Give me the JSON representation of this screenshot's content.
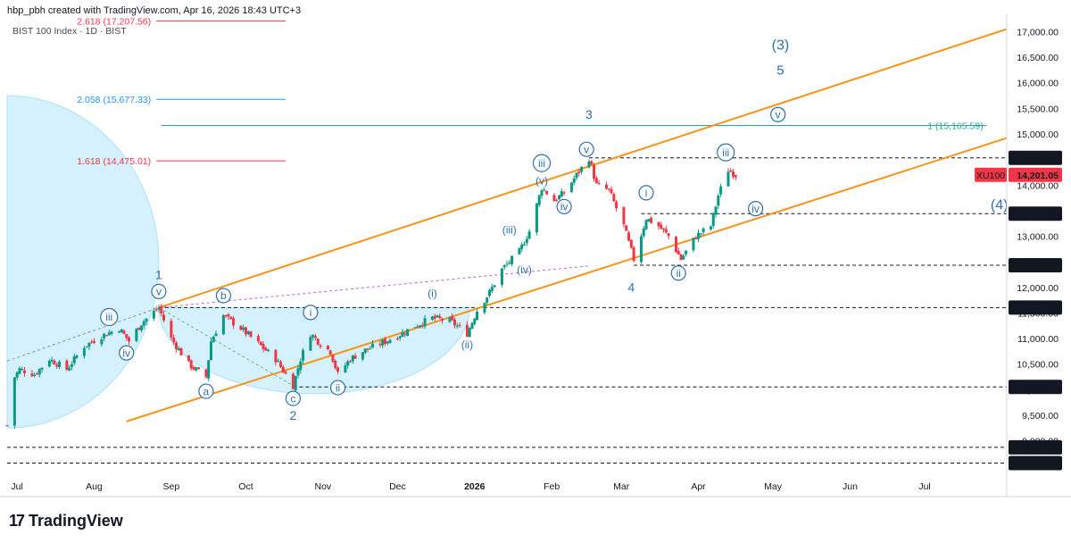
{
  "header": {
    "caption": "hbp_pbh created with TradingView.com, Apr 16, 2026 18:43 UTC+3",
    "symbol_line": "BIST 100 Index · 1D · BIST"
  },
  "footer": {
    "brand": "TradingView",
    "logo_mark": "17"
  },
  "chart_data": {
    "type": "candlestick",
    "symbol": "XU100",
    "last_price": "14,201.05",
    "colors": {
      "up": "#089981",
      "down": "#f23645",
      "channel": "#f7931a",
      "wave_label": "#2e6fac",
      "ellipse_fill": "#b3e5fc",
      "fib_red": "#f23645",
      "fib_blue": "#2196f3",
      "fib_teal": "#26a69a",
      "dashed_line": "#131722",
      "purple_dashed": "#9c27b0",
      "green_dashed": "#4caf50",
      "last_price_bg": "#f23645"
    },
    "y_axis": {
      "range": [
        8400,
        17200
      ],
      "ticks": [
        "9,000.00",
        "9,500.00",
        "10,000.00",
        "10,500.00",
        "11,000.00",
        "11,500.00",
        "12,000.00",
        "12,500.00",
        "13,000.00",
        "13,500.00",
        "14,000.00",
        "14,500.00",
        "15,000.00",
        "15,500.00",
        "16,000.00",
        "16,500.00",
        "17,000.00"
      ],
      "tick_values": [
        9000,
        9500,
        10000,
        10500,
        11000,
        11500,
        12000,
        12500,
        13000,
        13500,
        14000,
        14500,
        15000,
        15500,
        16000,
        16500,
        17000
      ]
    },
    "x_axis": {
      "labels": [
        "Jul",
        "Aug",
        "Sep",
        "Oct",
        "Nov",
        "Dec",
        "2026",
        "Feb",
        "Mar",
        "Apr",
        "May",
        "Jun",
        "Jul"
      ],
      "label_dates": [
        "2025-07-01",
        "2025-08-01",
        "2025-09-01",
        "2025-10-01",
        "2025-11-01",
        "2025-12-01",
        "2026-01-01",
        "2026-02-01",
        "2026-03-01",
        "2026-04-01",
        "2026-05-01",
        "2026-06-01",
        "2026-07-01"
      ],
      "bold_labels": [
        "2026"
      ],
      "range": [
        "2025-06-27",
        "2026-08-03"
      ]
    },
    "price_levels": [
      {
        "value": 14532.67,
        "label": "14,532.67",
        "from": "2026-02-16"
      },
      {
        "value": 13441.36,
        "label": "13,441.36",
        "from": "2026-03-09"
      },
      {
        "value": 12433.04,
        "label": "12,433.04",
        "from": "2026-03-06"
      },
      {
        "value": 11605.3,
        "label": "11,605.30",
        "from": "2025-08-27"
      },
      {
        "value": 10053.74,
        "label": "10,053.74",
        "from": "2025-10-20"
      },
      {
        "value": 8872.75,
        "label": "8,872.75",
        "from": "2025-06-27"
      },
      {
        "value": 8566.62,
        "label": "8,566.62",
        "from": "2025-06-27"
      }
    ],
    "fib_levels": [
      {
        "label": "2.618 (17,207.56)",
        "value": 17207.56,
        "color": "red",
        "from": "2025-08-26",
        "to": "2025-10-17"
      },
      {
        "label": "2.058 (15,677.33)",
        "value": 15677.33,
        "color": "blue",
        "from": "2025-08-26",
        "to": "2025-10-17"
      },
      {
        "label": "1.618 (14,475.01)",
        "value": 14475.01,
        "color": "red",
        "from": "2025-08-26",
        "to": "2025-10-17"
      },
      {
        "label": "1 (15,165.59)",
        "value": 15165.59,
        "color": "teal",
        "from": "2025-08-28",
        "to": "2026-07-26"
      }
    ],
    "channel_lines": [
      {
        "from": [
          "2025-08-27",
          11605.3
        ],
        "to": [
          "2026-08-03",
          17050
        ]
      },
      {
        "from": [
          "2025-08-14",
          9380
        ],
        "to": [
          "2026-08-03",
          14920
        ]
      }
    ],
    "wave_labels": [
      {
        "text": "1",
        "date": "2025-08-27",
        "price": 12250,
        "circle": false,
        "size": 14
      },
      {
        "text": "v",
        "date": "2025-08-27",
        "price": 11920,
        "circle": true
      },
      {
        "text": "iii",
        "date": "2025-08-07",
        "price": 11420,
        "circle": true
      },
      {
        "text": "iv",
        "date": "2025-08-14",
        "price": 10720,
        "circle": true
      },
      {
        "text": "b",
        "date": "2025-09-22",
        "price": 11840,
        "circle": true
      },
      {
        "text": "a",
        "date": "2025-09-15",
        "price": 9970,
        "circle": true
      },
      {
        "text": "c",
        "date": "2025-10-20",
        "price": 9830,
        "circle": true
      },
      {
        "text": "2",
        "date": "2025-10-20",
        "price": 9500,
        "circle": false,
        "size": 14
      },
      {
        "text": "i",
        "date": "2025-10-27",
        "price": 11510,
        "circle": true
      },
      {
        "text": "ii",
        "date": "2025-11-07",
        "price": 10040,
        "circle": true
      },
      {
        "text": "(i)",
        "date": "2025-12-15",
        "price": 11890,
        "circle": false
      },
      {
        "text": "(ii)",
        "date": "2025-12-29",
        "price": 10880,
        "circle": false
      },
      {
        "text": "(iii)",
        "date": "2026-01-15",
        "price": 13130,
        "circle": false
      },
      {
        "text": "(iv)",
        "date": "2026-01-21",
        "price": 12350,
        "circle": false
      },
      {
        "text": "(v)",
        "date": "2026-01-28",
        "price": 14090,
        "circle": false
      },
      {
        "text": "iii",
        "date": "2026-01-28",
        "price": 14430,
        "circle": true
      },
      {
        "text": "iv",
        "date": "2026-02-06",
        "price": 13580,
        "circle": true
      },
      {
        "text": "v",
        "date": "2026-02-15",
        "price": 14700,
        "circle": true
      },
      {
        "text": "3",
        "date": "2026-02-16",
        "price": 15380,
        "circle": false,
        "size": 14
      },
      {
        "text": "4",
        "date": "2026-03-05",
        "price": 12000,
        "circle": false,
        "size": 14
      },
      {
        "text": "i",
        "date": "2026-03-11",
        "price": 13850,
        "circle": true
      },
      {
        "text": "ii",
        "date": "2026-03-24",
        "price": 12280,
        "circle": true
      },
      {
        "text": "iii",
        "date": "2026-04-12",
        "price": 14640,
        "circle": true
      },
      {
        "text": "iv",
        "date": "2026-04-24",
        "price": 13540,
        "circle": true
      },
      {
        "text": "v",
        "date": "2026-05-03",
        "price": 15380,
        "circle": true
      },
      {
        "text": "5",
        "date": "2026-05-04",
        "price": 16250,
        "circle": false,
        "size": 15
      },
      {
        "text": "(3)",
        "date": "2026-05-04",
        "price": 16750,
        "circle": false,
        "size": 16
      },
      {
        "text": "(4)",
        "date": "2026-07-31",
        "price": 13620,
        "circle": false,
        "size": 16
      }
    ],
    "path_points": [
      [
        "2025-06-27",
        9300
      ],
      [
        "2025-06-30",
        10250
      ],
      [
        "2025-07-02",
        10400
      ],
      [
        "2025-07-08",
        10300
      ],
      [
        "2025-07-14",
        10600
      ],
      [
        "2025-07-21",
        10400
      ],
      [
        "2025-07-28",
        10850
      ],
      [
        "2025-08-04",
        11050
      ],
      [
        "2025-08-11",
        11200
      ],
      [
        "2025-08-15",
        10950
      ],
      [
        "2025-08-20",
        11300
      ],
      [
        "2025-08-27",
        11605
      ],
      [
        "2025-09-01",
        11000
      ],
      [
        "2025-09-08",
        10500
      ],
      [
        "2025-09-12",
        10350
      ],
      [
        "2025-09-15",
        10250
      ],
      [
        "2025-09-17",
        10950
      ],
      [
        "2025-09-22",
        11450
      ],
      [
        "2025-09-29",
        11200
      ],
      [
        "2025-10-06",
        10900
      ],
      [
        "2025-10-13",
        10600
      ],
      [
        "2025-10-17",
        10300
      ],
      [
        "2025-10-20",
        10080
      ],
      [
        "2025-10-23",
        10600
      ],
      [
        "2025-10-27",
        11100
      ],
      [
        "2025-10-31",
        10900
      ],
      [
        "2025-11-04",
        10750
      ],
      [
        "2025-11-07",
        10300
      ],
      [
        "2025-11-12",
        10600
      ],
      [
        "2025-11-17",
        10750
      ],
      [
        "2025-11-24",
        10900
      ],
      [
        "2025-12-01",
        11050
      ],
      [
        "2025-12-08",
        11250
      ],
      [
        "2025-12-15",
        11400
      ],
      [
        "2025-12-22",
        11350
      ],
      [
        "2025-12-29",
        11100
      ],
      [
        "2026-01-02",
        11550
      ],
      [
        "2026-01-07",
        11900
      ],
      [
        "2026-01-12",
        12350
      ],
      [
        "2026-01-19",
        12700
      ],
      [
        "2026-01-23",
        13100
      ],
      [
        "2026-01-28",
        13950
      ],
      [
        "2026-02-02",
        13700
      ],
      [
        "2026-02-06",
        13850
      ],
      [
        "2026-02-11",
        14200
      ],
      [
        "2026-02-16",
        14530
      ],
      [
        "2026-02-19",
        14000
      ],
      [
        "2026-02-24",
        13900
      ],
      [
        "2026-03-02",
        13200
      ],
      [
        "2026-03-06",
        12550
      ],
      [
        "2026-03-11",
        13350
      ],
      [
        "2026-03-16",
        13200
      ],
      [
        "2026-03-20",
        13000
      ],
      [
        "2026-03-25",
        12550
      ],
      [
        "2026-03-31",
        13000
      ],
      [
        "2026-04-06",
        13200
      ],
      [
        "2026-04-09",
        13800
      ],
      [
        "2026-04-13",
        14300
      ],
      [
        "2026-04-16",
        14200
      ]
    ]
  }
}
